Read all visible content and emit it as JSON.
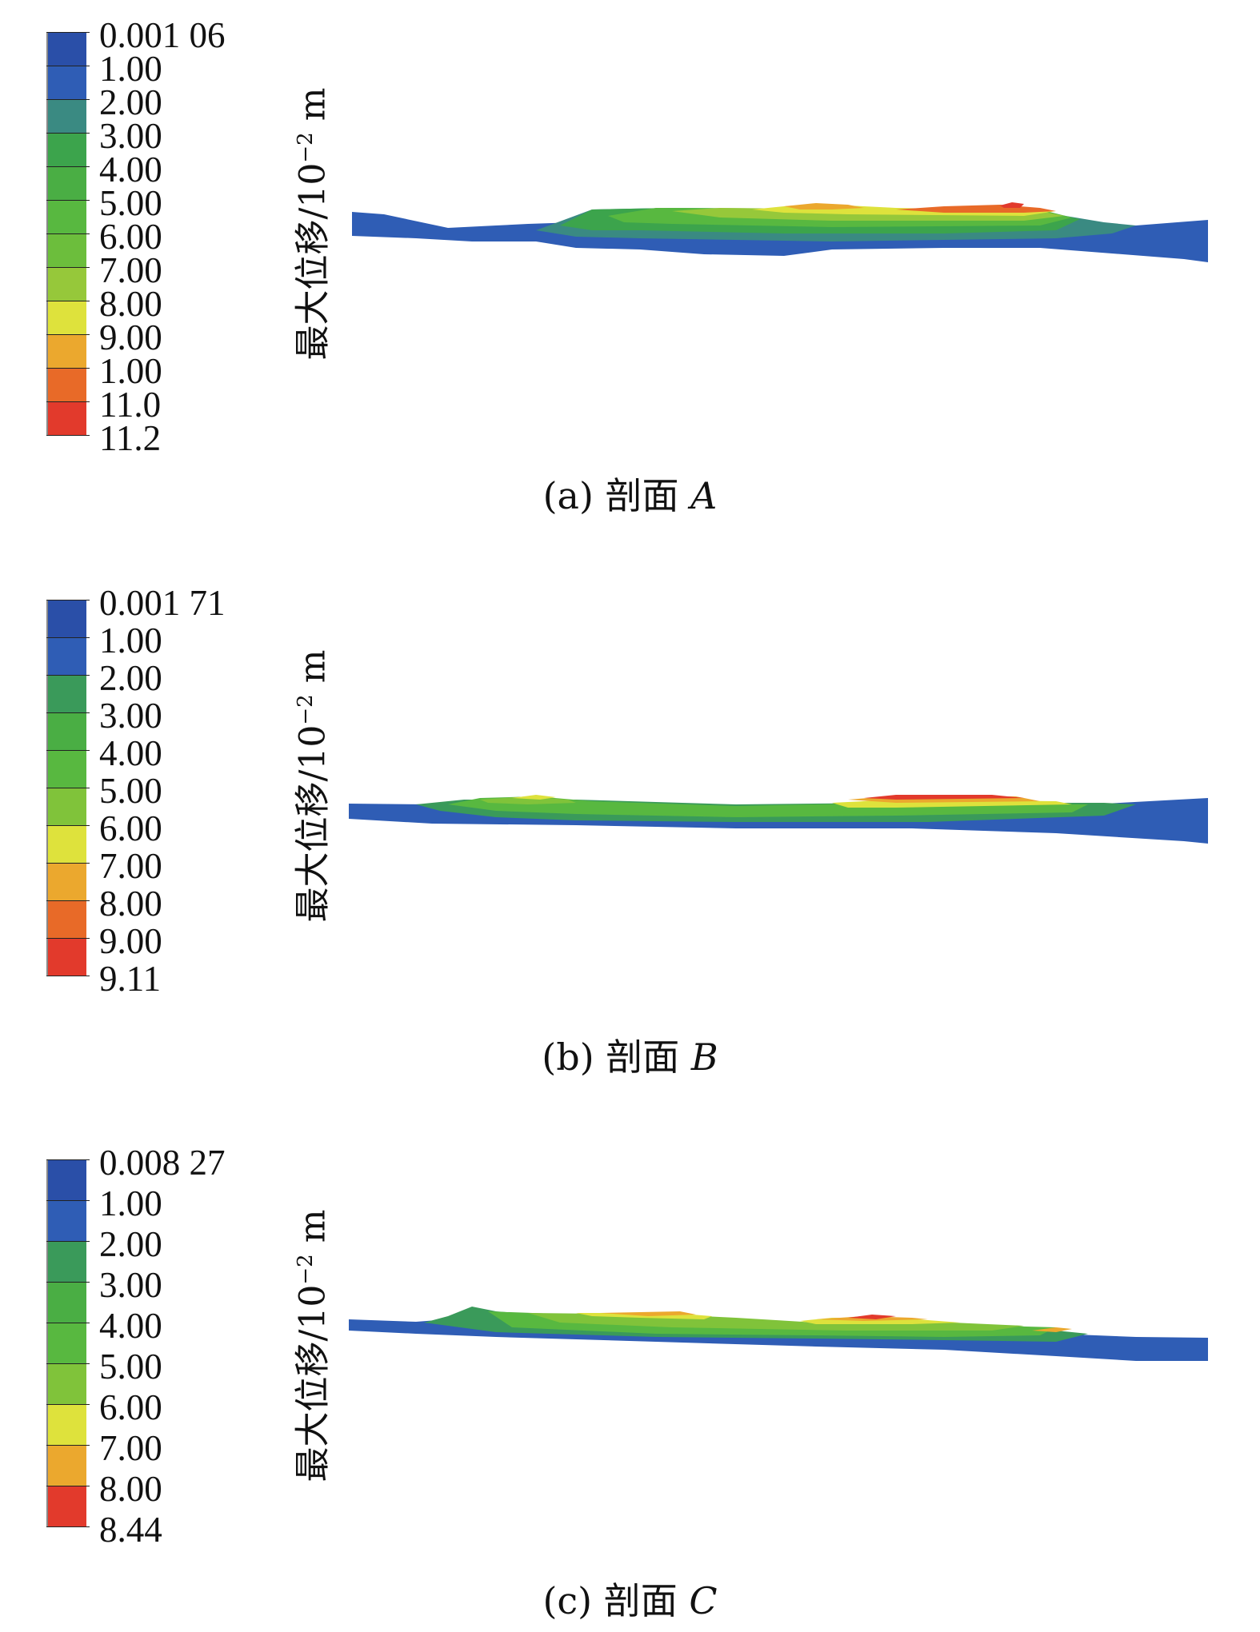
{
  "colors": {
    "blue_dark": "#2a4fa8",
    "blue": "#2f5db5",
    "teal": "#3a8a82",
    "green_dark": "#3ca44c",
    "green": "#58b840",
    "green_light": "#80c33a",
    "yellow_green": "#aacd3a",
    "yellow": "#dee23c",
    "orange": "#eba82e",
    "orange_red": "#e86a28",
    "red": "#e23a2c"
  },
  "panels": [
    {
      "caption_prefix": "(a) 剖面 ",
      "caption_letter": "A",
      "ylabel_text": "最大位移/10",
      "ylabel_exp": "−2",
      "ylabel_unit": " m",
      "legend": [
        {
          "label": "0.001 06",
          "color": "#2a4fa8"
        },
        {
          "label": "1.00",
          "color": "#2f5db5"
        },
        {
          "label": "2.00",
          "color": "#3a8a82"
        },
        {
          "label": "3.00",
          "color": "#3ca44c"
        },
        {
          "label": "4.00",
          "color": "#4aae44"
        },
        {
          "label": "5.00",
          "color": "#58b840"
        },
        {
          "label": "6.00",
          "color": "#6cbe3c"
        },
        {
          "label": "7.00",
          "color": "#96c83a"
        },
        {
          "label": "8.00",
          "color": "#dee23c"
        },
        {
          "label": "9.00",
          "color": "#eba82e"
        },
        {
          "label": "1.00",
          "color": "#e86a28"
        },
        {
          "label": "11.0",
          "color": "#e23a2c"
        },
        {
          "label": "11.2",
          "color": null
        }
      ]
    },
    {
      "caption_prefix": "(b) 剖面 ",
      "caption_letter": "B",
      "ylabel_text": "最大位移/10",
      "ylabel_exp": "−2",
      "ylabel_unit": " m",
      "legend": [
        {
          "label": "0.001 71",
          "color": "#2a4fa8"
        },
        {
          "label": "1.00",
          "color": "#2f5db5"
        },
        {
          "label": "2.00",
          "color": "#3a9a5a"
        },
        {
          "label": "3.00",
          "color": "#4aae44"
        },
        {
          "label": "4.00",
          "color": "#58b840"
        },
        {
          "label": "5.00",
          "color": "#80c33a"
        },
        {
          "label": "6.00",
          "color": "#dee23c"
        },
        {
          "label": "7.00",
          "color": "#eba82e"
        },
        {
          "label": "8.00",
          "color": "#e86a28"
        },
        {
          "label": "9.00",
          "color": "#e23a2c"
        },
        {
          "label": "9.11",
          "color": null
        }
      ]
    },
    {
      "caption_prefix": "(c) 剖面 ",
      "caption_letter": "C",
      "ylabel_text": "最大位移/10",
      "ylabel_exp": "−2",
      "ylabel_unit": " m",
      "legend": [
        {
          "label": "0.008 27",
          "color": "#2a4fa8"
        },
        {
          "label": "1.00",
          "color": "#2f5db5"
        },
        {
          "label": "2.00",
          "color": "#3a9a5a"
        },
        {
          "label": "3.00",
          "color": "#4aae44"
        },
        {
          "label": "4.00",
          "color": "#58b840"
        },
        {
          "label": "5.00",
          "color": "#80c33a"
        },
        {
          "label": "6.00",
          "color": "#dee23c"
        },
        {
          "label": "7.00",
          "color": "#eba82e"
        },
        {
          "label": "8.00",
          "color": "#e23a2c"
        },
        {
          "label": "8.44",
          "color": null
        }
      ]
    }
  ]
}
